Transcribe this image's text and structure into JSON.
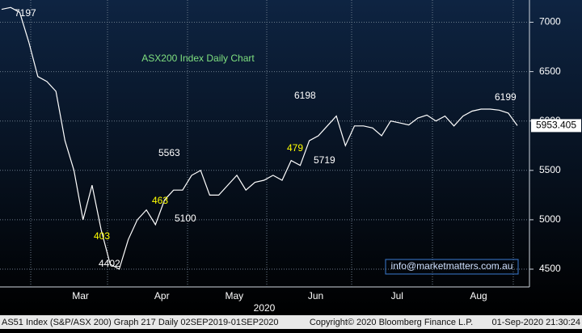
{
  "chart_data": {
    "type": "line",
    "title": "ASX200 Index Daily Chart",
    "x_axis_label": "2020",
    "categories": [
      null,
      null,
      null,
      null,
      null,
      null,
      null,
      null,
      "Mar",
      null,
      null,
      null,
      null,
      null,
      null,
      null,
      null,
      "Apr",
      null,
      null,
      null,
      null,
      null,
      null,
      null,
      "May",
      null,
      null,
      null,
      null,
      null,
      null,
      null,
      null,
      "Jun",
      null,
      null,
      null,
      null,
      null,
      null,
      null,
      null,
      "Jul",
      null,
      null,
      null,
      null,
      null,
      null,
      null,
      null,
      "Aug",
      null,
      null,
      null,
      null,
      null
    ],
    "values": [
      7130,
      7150,
      7100,
      6800,
      6450,
      6400,
      6300,
      5800,
      5500,
      5000,
      5350,
      4900,
      4550,
      4500,
      4800,
      5000,
      5100,
      4950,
      5200,
      5300,
      5300,
      5450,
      5500,
      5250,
      5250,
      5350,
      5450,
      5300,
      5380,
      5400,
      5450,
      5400,
      5600,
      5550,
      5800,
      5850,
      5950,
      6050,
      5750,
      5950,
      5950,
      5930,
      5850,
      6000,
      5980,
      5960,
      6030,
      6060,
      6000,
      6050,
      5950,
      6050,
      6100,
      6120,
      6120,
      6110,
      6080,
      5953.405
    ],
    "color": "#ffffff",
    "ylim": [
      4320,
      7225
    ],
    "yticks": [
      4500,
      5000,
      5500,
      6000,
      6500,
      7000
    ],
    "grid": true,
    "last_value_label": "5953.405",
    "annotations": [
      {
        "text": "7197",
        "color": "#ffffff"
      },
      {
        "text": "4402",
        "color": "#ffffff"
      },
      {
        "text": "403",
        "color": "#ffff00"
      },
      {
        "text": "5563",
        "color": "#ffffff"
      },
      {
        "text": "463",
        "color": "#ffff00"
      },
      {
        "text": "5100",
        "color": "#ffffff"
      },
      {
        "text": "6198",
        "color": "#ffffff"
      },
      {
        "text": "479",
        "color": "#ffff00"
      },
      {
        "text": "5719",
        "color": "#ffffff"
      },
      {
        "text": "6199",
        "color": "#ffffff"
      }
    ],
    "watermark": "info@marketmatters.com.au",
    "footer": {
      "left": "AS51 Index (S&P/ASX 200) Graph 217  Daily 02SEP2019-01SEP2020",
      "center": "Copyright© 2020 Bloomberg Finance L.P.",
      "right": "01-Sep-2020 21:30:24"
    }
  }
}
